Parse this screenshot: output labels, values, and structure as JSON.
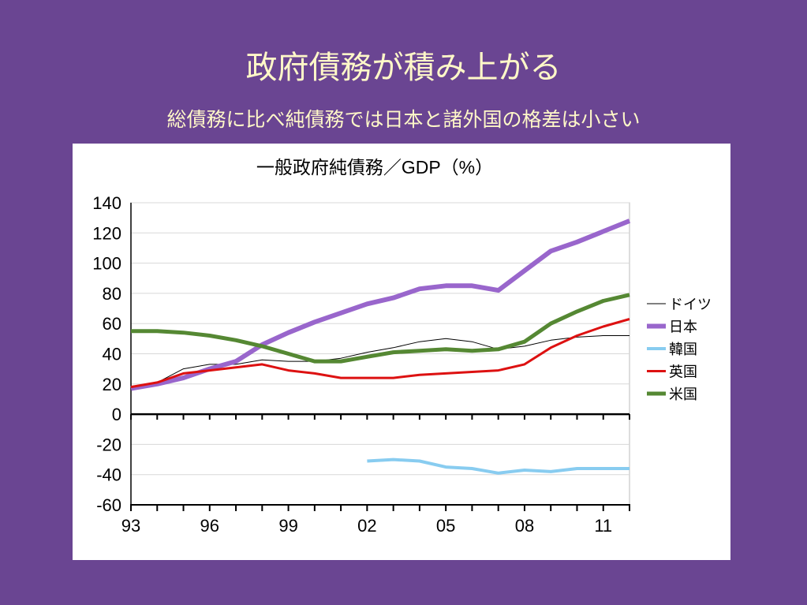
{
  "slide": {
    "title": "政府債務が積み上がる",
    "subtitle": "総債務に比べ純債務では日本と諸外国の格差は小さい"
  },
  "colors": {
    "background": "#6a4592",
    "title_text": "#fff8c8",
    "panel": "#ffffff"
  },
  "chart_data": {
    "type": "line",
    "title": "一般政府純債務／GDP（%）",
    "xlabel": "",
    "ylabel": "",
    "ylim": [
      -60,
      140
    ],
    "yticks": [
      140,
      120,
      100,
      80,
      60,
      40,
      20,
      0,
      -20,
      -40,
      -60
    ],
    "xlim": [
      1993,
      2012
    ],
    "xticks": [
      {
        "year": 1993,
        "label": "93"
      },
      {
        "year": 1996,
        "label": "96"
      },
      {
        "year": 1999,
        "label": "99"
      },
      {
        "year": 2002,
        "label": "02"
      },
      {
        "year": 2005,
        "label": "05"
      },
      {
        "year": 2008,
        "label": "08"
      },
      {
        "year": 2011,
        "label": "11"
      }
    ],
    "grid": true,
    "legend_position": "right",
    "series": [
      {
        "name": "ドイツ",
        "color": "#000000",
        "width": 1,
        "points": [
          [
            1993,
            18
          ],
          [
            1994,
            21
          ],
          [
            1995,
            30
          ],
          [
            1996,
            33
          ],
          [
            1997,
            33
          ],
          [
            1998,
            36
          ],
          [
            1999,
            35
          ],
          [
            2000,
            35
          ],
          [
            2001,
            37
          ],
          [
            2002,
            41
          ],
          [
            2003,
            44
          ],
          [
            2004,
            48
          ],
          [
            2005,
            50
          ],
          [
            2006,
            48
          ],
          [
            2007,
            43
          ],
          [
            2008,
            45
          ],
          [
            2009,
            49
          ],
          [
            2010,
            51
          ],
          [
            2011,
            52
          ],
          [
            2012,
            52
          ]
        ]
      },
      {
        "name": "日本",
        "color": "#9966cc",
        "width": 6,
        "points": [
          [
            1993,
            17
          ],
          [
            1994,
            20
          ],
          [
            1995,
            24
          ],
          [
            1996,
            30
          ],
          [
            1997,
            35
          ],
          [
            1998,
            46
          ],
          [
            1999,
            54
          ],
          [
            2000,
            61
          ],
          [
            2001,
            67
          ],
          [
            2002,
            73
          ],
          [
            2003,
            77
          ],
          [
            2004,
            83
          ],
          [
            2005,
            85
          ],
          [
            2006,
            85
          ],
          [
            2007,
            82
          ],
          [
            2008,
            95
          ],
          [
            2009,
            108
          ],
          [
            2010,
            114
          ],
          [
            2011,
            121
          ],
          [
            2012,
            128
          ]
        ]
      },
      {
        "name": "韓国",
        "color": "#88ccf0",
        "width": 4,
        "points": [
          [
            2002,
            -31
          ],
          [
            2003,
            -30
          ],
          [
            2004,
            -31
          ],
          [
            2005,
            -35
          ],
          [
            2006,
            -36
          ],
          [
            2007,
            -39
          ],
          [
            2008,
            -37
          ],
          [
            2009,
            -38
          ],
          [
            2010,
            -36
          ],
          [
            2011,
            -36
          ],
          [
            2012,
            -36
          ]
        ]
      },
      {
        "name": "英国",
        "color": "#dd1111",
        "width": 3,
        "points": [
          [
            1993,
            18
          ],
          [
            1994,
            21
          ],
          [
            1995,
            27
          ],
          [
            1996,
            29
          ],
          [
            1997,
            31
          ],
          [
            1998,
            33
          ],
          [
            1999,
            29
          ],
          [
            2000,
            27
          ],
          [
            2001,
            24
          ],
          [
            2002,
            24
          ],
          [
            2003,
            24
          ],
          [
            2004,
            26
          ],
          [
            2005,
            27
          ],
          [
            2006,
            28
          ],
          [
            2007,
            29
          ],
          [
            2008,
            33
          ],
          [
            2009,
            44
          ],
          [
            2010,
            52
          ],
          [
            2011,
            58
          ],
          [
            2012,
            63
          ]
        ]
      },
      {
        "name": "米国",
        "color": "#558833",
        "width": 5,
        "points": [
          [
            1993,
            55
          ],
          [
            1994,
            55
          ],
          [
            1995,
            54
          ],
          [
            1996,
            52
          ],
          [
            1997,
            49
          ],
          [
            1998,
            45
          ],
          [
            1999,
            40
          ],
          [
            2000,
            35
          ],
          [
            2001,
            35
          ],
          [
            2002,
            38
          ],
          [
            2003,
            41
          ],
          [
            2004,
            42
          ],
          [
            2005,
            43
          ],
          [
            2006,
            42
          ],
          [
            2007,
            43
          ],
          [
            2008,
            48
          ],
          [
            2009,
            60
          ],
          [
            2010,
            68
          ],
          [
            2011,
            75
          ],
          [
            2012,
            79
          ]
        ]
      }
    ]
  }
}
